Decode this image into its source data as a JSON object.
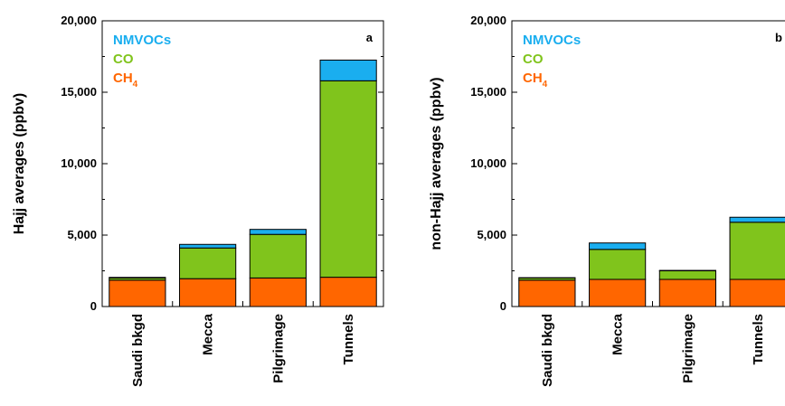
{
  "chart_data": [
    {
      "type": "bar",
      "stacked": true,
      "panel_label": "a",
      "ylabel": "Hajj averages (ppbv)",
      "ylim": [
        0,
        20000
      ],
      "yticks": [
        0,
        5000,
        10000,
        15000,
        20000
      ],
      "ytick_labels": [
        "0",
        "5,000",
        "10,000",
        "15,000",
        "20,000"
      ],
      "categories": [
        "Saudi bkgd",
        "Mecca",
        "Pilgrimage",
        "Tunnels"
      ],
      "legend_position": "top-left",
      "series": [
        {
          "name": "CH",
          "name_sub": "4",
          "color": "#ff6600",
          "values": [
            1850,
            1950,
            2000,
            2050
          ]
        },
        {
          "name": "CO",
          "color": "#80c41c",
          "values": [
            150,
            2150,
            3050,
            13750
          ]
        },
        {
          "name": "NMVOCs",
          "color": "#1aaeef",
          "values": [
            40,
            250,
            350,
            1450
          ]
        }
      ]
    },
    {
      "type": "bar",
      "stacked": true,
      "panel_label": "b",
      "ylabel": "non-Hajj averages (ppbv)",
      "ylim": [
        0,
        20000
      ],
      "yticks": [
        0,
        5000,
        10000,
        15000,
        20000
      ],
      "ytick_labels": [
        "0",
        "5,000",
        "10,000",
        "15,000",
        "20,000"
      ],
      "categories": [
        "Saudi bkgd",
        "Mecca",
        "Pilgrimage",
        "Tunnels"
      ],
      "legend_position": "top-left",
      "series": [
        {
          "name": "CH",
          "name_sub": "4",
          "color": "#ff6600",
          "values": [
            1850,
            1900,
            1900,
            1900
          ]
        },
        {
          "name": "CO",
          "color": "#80c41c",
          "values": [
            150,
            2100,
            600,
            4000
          ]
        },
        {
          "name": "NMVOCs",
          "color": "#1aaeef",
          "values": [
            20,
            450,
            30,
            350
          ]
        }
      ]
    }
  ]
}
